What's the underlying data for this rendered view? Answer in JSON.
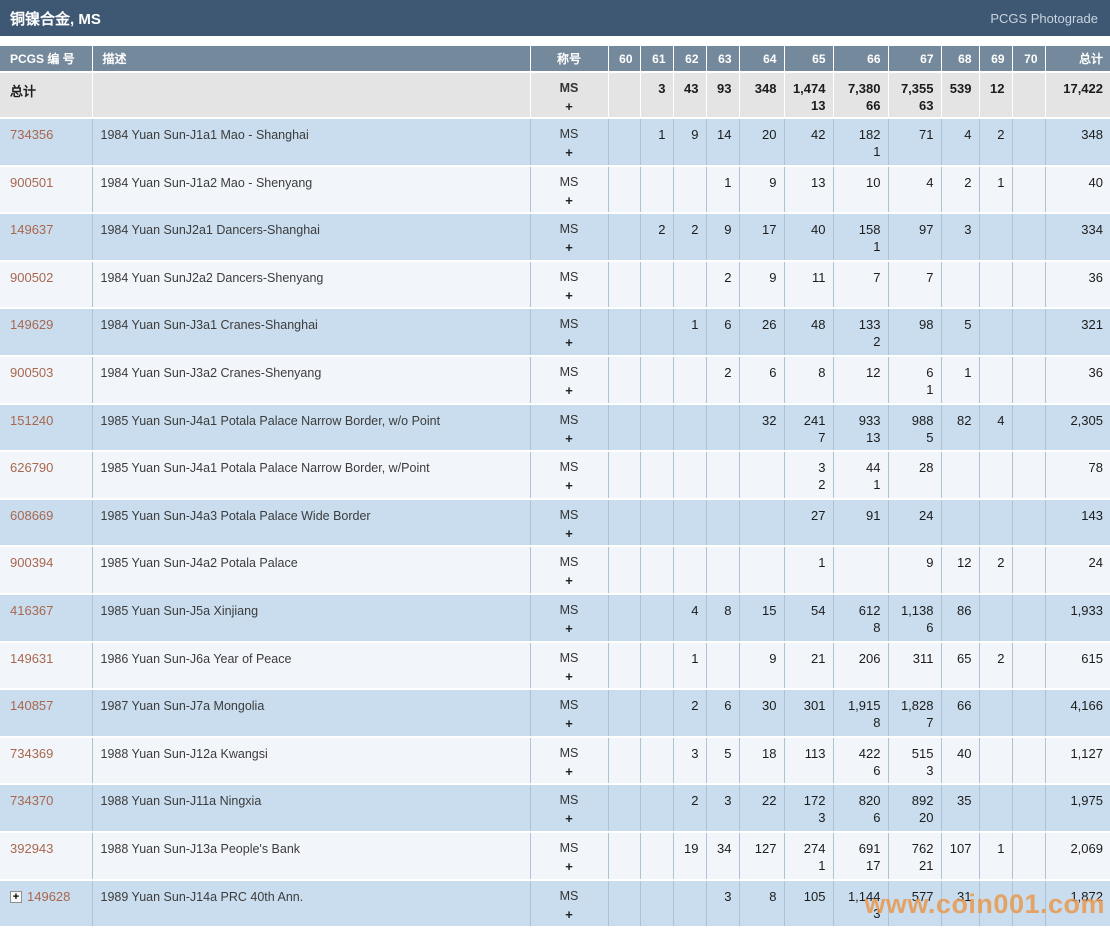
{
  "page": {
    "title": "铜镍合金, MS",
    "photograde_link": "PCGS Photograde",
    "watermark": "www.coin001.com"
  },
  "colors": {
    "titlebar_bg": "#3e5873",
    "header_bg": "#75899c",
    "totals_row_bg": "#e4e4e4",
    "row_blue": "#c9ddee",
    "row_white": "#f2f6fa",
    "cell_border": "#aec2d4",
    "pcgs_link": "#a9674e",
    "watermark": "#e9984c"
  },
  "icons": {
    "expand_glyph": "+"
  },
  "table": {
    "headers": {
      "pcgs_no": "PCGS 编 号",
      "description": "描述",
      "designation": "称号",
      "grades": [
        "60",
        "61",
        "62",
        "63",
        "64",
        "65",
        "66",
        "67",
        "68",
        "69",
        "70"
      ],
      "total_label": "总计"
    },
    "designation": {
      "line1": "MS",
      "line2": "+"
    },
    "totals_row": {
      "label": "总计",
      "ms": [
        "",
        "3",
        "43",
        "93",
        "348",
        "1,474",
        "7,380",
        "7,355",
        "539",
        "12",
        ""
      ],
      "plus": [
        "",
        "",
        "",
        "",
        "",
        "13",
        "66",
        "63",
        "",
        "",
        ""
      ],
      "total": "17,422"
    },
    "rows": [
      {
        "pcgs_no": "734356",
        "expandable": false,
        "description": "1984 Yuan Sun-J1a1 Mao - Shanghai",
        "ms": [
          "",
          "1",
          "9",
          "14",
          "20",
          "42",
          "182",
          "71",
          "4",
          "2",
          ""
        ],
        "plus": [
          "",
          "",
          "",
          "",
          "",
          "",
          "1",
          "",
          "",
          "",
          ""
        ],
        "total": "348"
      },
      {
        "pcgs_no": "900501",
        "expandable": false,
        "description": "1984 Yuan Sun-J1a2 Mao - Shenyang",
        "ms": [
          "",
          "",
          "",
          "1",
          "9",
          "13",
          "10",
          "4",
          "2",
          "1",
          ""
        ],
        "plus": [
          "",
          "",
          "",
          "",
          "",
          "",
          "",
          "",
          "",
          "",
          ""
        ],
        "total": "40"
      },
      {
        "pcgs_no": "149637",
        "expandable": false,
        "description": "1984 Yuan SunJ2a1 Dancers-Shanghai",
        "ms": [
          "",
          "2",
          "2",
          "9",
          "17",
          "40",
          "158",
          "97",
          "3",
          "",
          ""
        ],
        "plus": [
          "",
          "",
          "",
          "",
          "",
          "",
          "1",
          "",
          "",
          "",
          ""
        ],
        "total": "334"
      },
      {
        "pcgs_no": "900502",
        "expandable": false,
        "description": "1984 Yuan SunJ2a2 Dancers-Shenyang",
        "ms": [
          "",
          "",
          "",
          "2",
          "9",
          "11",
          "7",
          "7",
          "",
          "",
          ""
        ],
        "plus": [
          "",
          "",
          "",
          "",
          "",
          "",
          "",
          "",
          "",
          "",
          ""
        ],
        "total": "36"
      },
      {
        "pcgs_no": "149629",
        "expandable": false,
        "description": "1984 Yuan Sun-J3a1 Cranes-Shanghai",
        "ms": [
          "",
          "",
          "1",
          "6",
          "26",
          "48",
          "133",
          "98",
          "5",
          "",
          ""
        ],
        "plus": [
          "",
          "",
          "",
          "",
          "",
          "",
          "2",
          "",
          "",
          "",
          ""
        ],
        "total": "321"
      },
      {
        "pcgs_no": "900503",
        "expandable": false,
        "description": "1984 Yuan Sun-J3a2 Cranes-Shenyang",
        "ms": [
          "",
          "",
          "",
          "2",
          "6",
          "8",
          "12",
          "6",
          "1",
          "",
          ""
        ],
        "plus": [
          "",
          "",
          "",
          "",
          "",
          "",
          "",
          "1",
          "",
          "",
          ""
        ],
        "total": "36"
      },
      {
        "pcgs_no": "151240",
        "expandable": false,
        "description": "1985 Yuan Sun-J4a1 Potala Palace Narrow Border, w/o Point",
        "ms": [
          "",
          "",
          "",
          "",
          "32",
          "241",
          "933",
          "988",
          "82",
          "4",
          ""
        ],
        "plus": [
          "",
          "",
          "",
          "",
          "",
          "7",
          "13",
          "5",
          "",
          "",
          ""
        ],
        "total": "2,305"
      },
      {
        "pcgs_no": "626790",
        "expandable": false,
        "description": "1985 Yuan Sun-J4a1 Potala Palace Narrow Border, w/Point",
        "ms": [
          "",
          "",
          "",
          "",
          "",
          "3",
          "44",
          "28",
          "",
          "",
          ""
        ],
        "plus": [
          "",
          "",
          "",
          "",
          "",
          "2",
          "1",
          "",
          "",
          "",
          ""
        ],
        "total": "78"
      },
      {
        "pcgs_no": "608669",
        "expandable": false,
        "description": "1985 Yuan Sun-J4a3 Potala Palace Wide Border",
        "ms": [
          "",
          "",
          "",
          "",
          "",
          "27",
          "91",
          "24",
          "",
          "",
          ""
        ],
        "plus": [
          "",
          "",
          "",
          "",
          "",
          "",
          "",
          "",
          "",
          "",
          ""
        ],
        "total": "143"
      },
      {
        "pcgs_no": "900394",
        "expandable": false,
        "description": "1985 Yuan Sun-J4a2 Potala Palace",
        "ms": [
          "",
          "",
          "",
          "",
          "",
          "1",
          "",
          "9",
          "12",
          "2",
          ""
        ],
        "plus": [
          "",
          "",
          "",
          "",
          "",
          "",
          "",
          "",
          "",
          "",
          ""
        ],
        "total": "24"
      },
      {
        "pcgs_no": "416367",
        "expandable": false,
        "description": "1985 Yuan Sun-J5a Xinjiang",
        "ms": [
          "",
          "",
          "4",
          "8",
          "15",
          "54",
          "612",
          "1,138",
          "86",
          "",
          ""
        ],
        "plus": [
          "",
          "",
          "",
          "",
          "",
          "",
          "8",
          "6",
          "",
          "",
          ""
        ],
        "total": "1,933"
      },
      {
        "pcgs_no": "149631",
        "expandable": false,
        "description": "1986 Yuan Sun-J6a Year of Peace",
        "ms": [
          "",
          "",
          "1",
          "",
          "9",
          "21",
          "206",
          "311",
          "65",
          "2",
          ""
        ],
        "plus": [
          "",
          "",
          "",
          "",
          "",
          "",
          "",
          "",
          "",
          "",
          ""
        ],
        "total": "615"
      },
      {
        "pcgs_no": "140857",
        "expandable": false,
        "description": "1987 Yuan Sun-J7a Mongolia",
        "ms": [
          "",
          "",
          "2",
          "6",
          "30",
          "301",
          "1,915",
          "1,828",
          "66",
          "",
          ""
        ],
        "plus": [
          "",
          "",
          "",
          "",
          "",
          "",
          "8",
          "7",
          "",
          "",
          ""
        ],
        "total": "4,166"
      },
      {
        "pcgs_no": "734369",
        "expandable": false,
        "description": "1988 Yuan Sun-J12a Kwangsi",
        "ms": [
          "",
          "",
          "3",
          "5",
          "18",
          "113",
          "422",
          "515",
          "40",
          "",
          ""
        ],
        "plus": [
          "",
          "",
          "",
          "",
          "",
          "",
          "6",
          "3",
          "",
          "",
          ""
        ],
        "total": "1,127"
      },
      {
        "pcgs_no": "734370",
        "expandable": false,
        "description": "1988 Yuan Sun-J11a Ningxia",
        "ms": [
          "",
          "",
          "2",
          "3",
          "22",
          "172",
          "820",
          "892",
          "35",
          "",
          ""
        ],
        "plus": [
          "",
          "",
          "",
          "",
          "",
          "3",
          "6",
          "20",
          "",
          "",
          ""
        ],
        "total": "1,975"
      },
      {
        "pcgs_no": "392943",
        "expandable": false,
        "description": "1988 Yuan Sun-J13a People's Bank",
        "ms": [
          "",
          "",
          "19",
          "34",
          "127",
          "274",
          "691",
          "762",
          "107",
          "1",
          ""
        ],
        "plus": [
          "",
          "",
          "",
          "",
          "",
          "1",
          "17",
          "21",
          "",
          "",
          ""
        ],
        "total": "2,069"
      },
      {
        "pcgs_no": "149628",
        "expandable": true,
        "description": "1989 Yuan Sun-J14a PRC 40th Ann.",
        "ms": [
          "",
          "",
          "",
          "3",
          "8",
          "105",
          "1,144",
          "577",
          "31",
          "",
          ""
        ],
        "plus": [
          "",
          "",
          "",
          "",
          "",
          "",
          "3",
          "",
          "",
          "",
          ""
        ],
        "total": "1,872"
      }
    ]
  }
}
